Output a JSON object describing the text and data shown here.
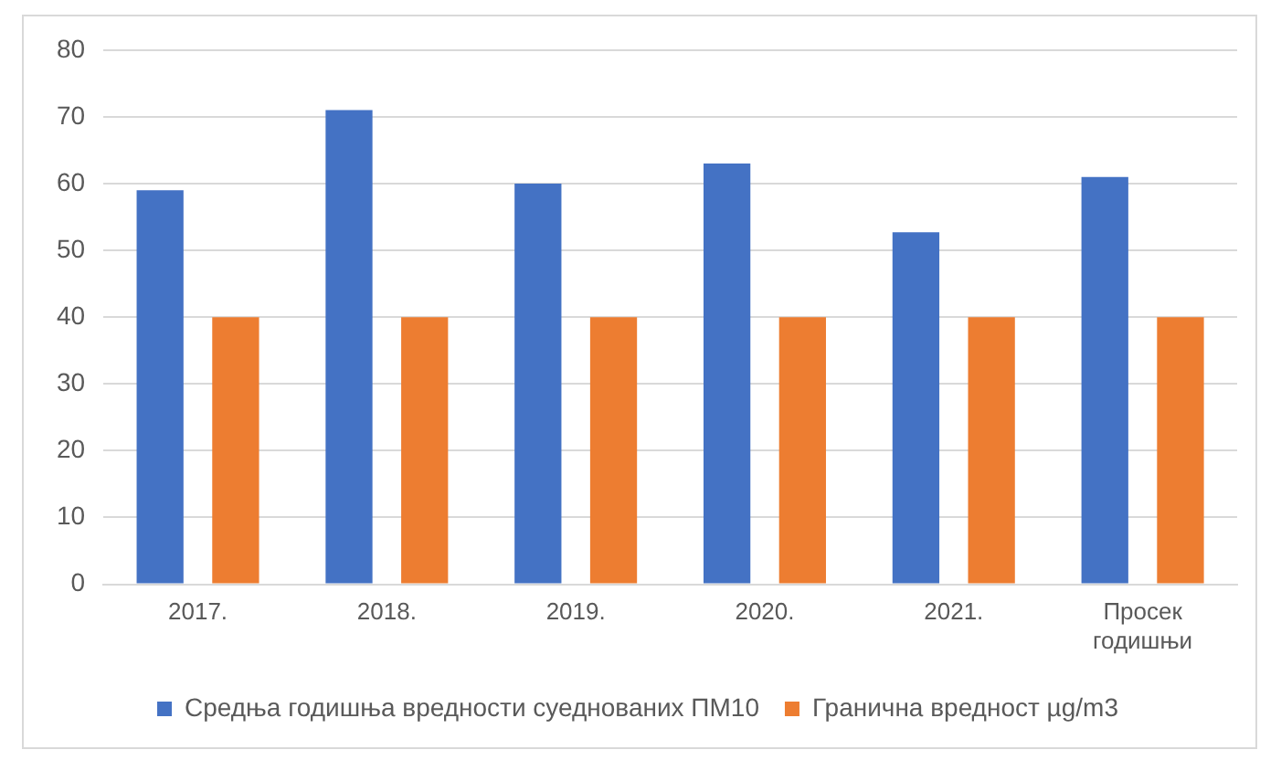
{
  "chart_data": {
    "type": "bar",
    "categories": [
      "2017.",
      "2018.",
      "2019.",
      "2020.",
      "2021.",
      "Просек годишњи"
    ],
    "series": [
      {
        "name": "Средња годишња вредности суеднованих ПМ10",
        "color": "#4472c4",
        "values": [
          59,
          71,
          60,
          63,
          52.7,
          61
        ]
      },
      {
        "name": "Гранична вредност µg/m3",
        "color": "#ed7d31",
        "values": [
          40,
          40,
          40,
          40,
          40,
          40
        ]
      }
    ],
    "ylim": [
      0,
      80
    ],
    "yticks": [
      0,
      10,
      20,
      30,
      40,
      50,
      60,
      70,
      80
    ],
    "grid": "y",
    "legend": "bottom"
  }
}
